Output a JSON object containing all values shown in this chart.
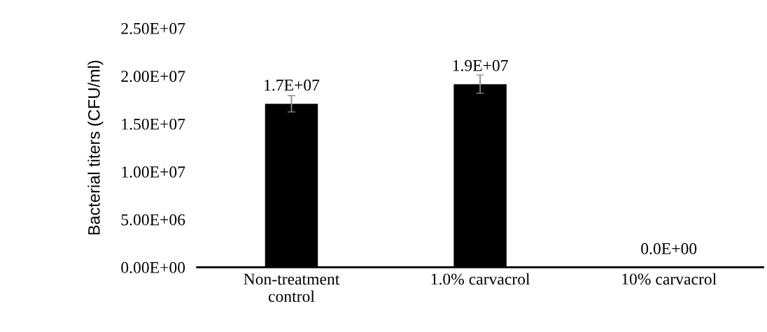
{
  "chart_data": {
    "type": "bar",
    "ylabel": "Bacterial titers (CFU/ml)",
    "categories": [
      "Non-treatment\ncontrol",
      "1.0% carvacrol",
      "10% carvacrol"
    ],
    "values": [
      17100000,
      19150000,
      0
    ],
    "errors": [
      850000,
      950000,
      null
    ],
    "color": "#000000",
    "value_labels": [
      "1.7E+07",
      "1.9E+07",
      "0.0E+00"
    ],
    "ylim": [
      0,
      25000000
    ],
    "yticks": [
      {
        "value": 0,
        "label": "0.00E+00"
      },
      {
        "value": 5000000,
        "label": "5.00E+06"
      },
      {
        "value": 10000000,
        "label": "1.00E+07"
      },
      {
        "value": 15000000,
        "label": "1.50E+07"
      },
      {
        "value": 20000000,
        "label": "2.00E+07"
      },
      {
        "value": 25000000,
        "label": "2.50E+07"
      }
    ],
    "grid": false,
    "legend": false
  }
}
